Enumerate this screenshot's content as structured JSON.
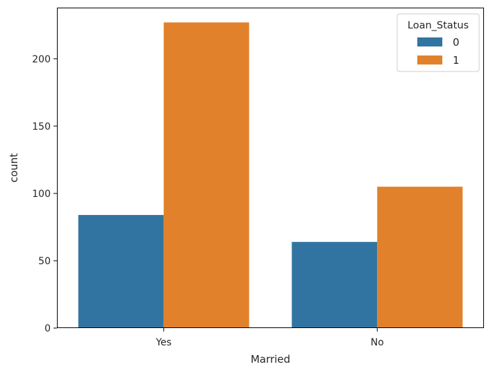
{
  "chart_data": {
    "type": "bar",
    "title": "",
    "xlabel": "Married",
    "ylabel": "count",
    "categories": [
      "Yes",
      "No"
    ],
    "series": [
      {
        "name": "0",
        "values": [
          84,
          64
        ],
        "color": "#3274a1"
      },
      {
        "name": "1",
        "values": [
          227,
          105
        ],
        "color": "#e1812c"
      }
    ],
    "ylim": [
      0,
      238
    ],
    "yticks": [
      0,
      50,
      100,
      150,
      200
    ],
    "legend": {
      "title": "Loan_Status",
      "placement": "top-right"
    },
    "grid": false
  }
}
